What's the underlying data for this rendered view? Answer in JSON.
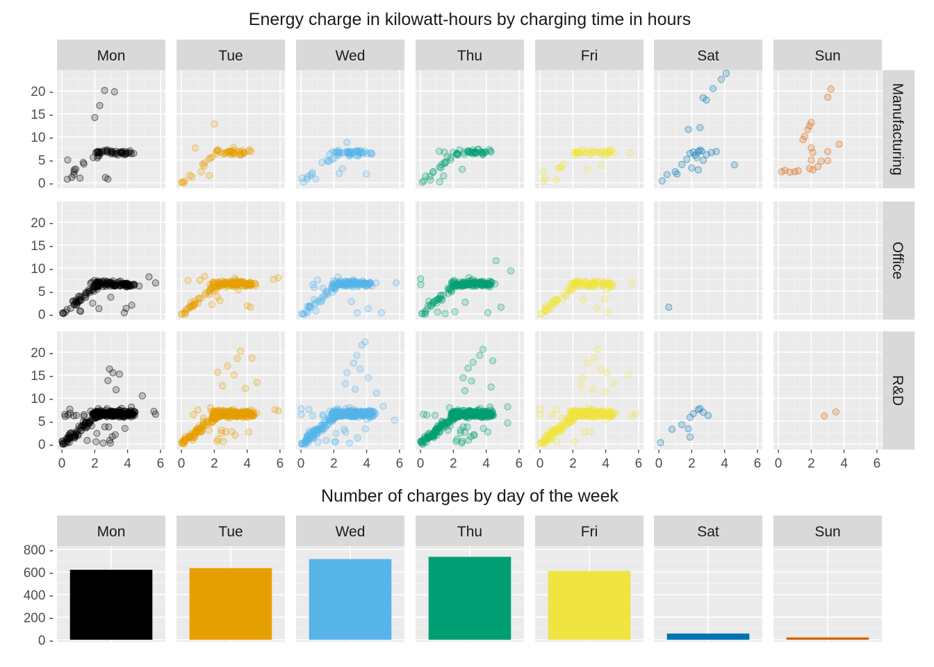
{
  "chart_data": [
    {
      "type": "scatter",
      "title": "Energy charge in kilowatt-hours by charging time in hours",
      "facet_cols": [
        "Mon",
        "Tue",
        "Wed",
        "Thu",
        "Fri",
        "Sat",
        "Sun"
      ],
      "facet_rows": [
        "Manufacturing",
        "Office",
        "R&D"
      ],
      "day_colors": [
        "#000000",
        "#E69F00",
        "#56B4E9",
        "#009E73",
        "#F0E442",
        "#0072B2",
        "#D55E00"
      ],
      "point_alpha": 0.2,
      "xlim": [
        -0.3,
        6.3
      ],
      "ylim": [
        -1.2,
        24.5
      ],
      "x_ticks": [
        0,
        2,
        4,
        6
      ],
      "y_ticks": [
        0,
        5,
        10,
        15,
        20
      ],
      "x_tick_labels": [
        "0",
        "2",
        "4",
        "6"
      ],
      "y_tick_labels": [
        "0 -",
        "5 -",
        "10 -",
        "15 -",
        "20 -"
      ],
      "grid": true,
      "panels": [
        {
          "row": "Manufacturing",
          "col": "Mon",
          "n": 55,
          "outliers": [
            [
              2.6,
              20.1
            ],
            [
              3.2,
              19.8
            ],
            [
              2.3,
              16.8
            ],
            [
              2.0,
              14.2
            ],
            [
              2.8,
              0.8
            ],
            [
              0.6,
              1.2
            ],
            [
              1.1,
              1.0
            ]
          ]
        },
        {
          "row": "Manufacturing",
          "col": "Tue",
          "n": 50,
          "outliers": [
            [
              2.0,
              12.8
            ],
            [
              0.2,
              0.4
            ],
            [
              1.7,
              1.6
            ]
          ]
        },
        {
          "row": "Manufacturing",
          "col": "Wed",
          "n": 60,
          "outliers": [
            [
              0.4,
              1.3
            ],
            [
              0.9,
              0.8
            ],
            [
              2.8,
              8.8
            ]
          ]
        },
        {
          "row": "Manufacturing",
          "col": "Thu",
          "n": 55,
          "outliers": [
            [
              0.1,
              0.1
            ],
            [
              0.6,
              0.6
            ],
            [
              1.4,
              1.5
            ]
          ]
        },
        {
          "row": "Manufacturing",
          "col": "Fri",
          "n": 45,
          "outliers": [
            [
              0.2,
              0.3
            ],
            [
              1.0,
              0.6
            ],
            [
              5.5,
              6.5
            ]
          ]
        },
        {
          "row": "Manufacturing",
          "col": "Sat",
          "n": 0,
          "points": [
            [
              4.1,
              23.8
            ],
            [
              3.8,
              22.5
            ],
            [
              3.3,
              20.5
            ],
            [
              2.7,
              18.5
            ],
            [
              2.9,
              18.0
            ],
            [
              2.5,
              12.0
            ],
            [
              1.8,
              11.6
            ],
            [
              0.2,
              0.4
            ],
            [
              0.5,
              1.8
            ],
            [
              1.0,
              2.4
            ],
            [
              1.4,
              4.0
            ],
            [
              1.7,
              5.1
            ],
            [
              1.9,
              6.4
            ],
            [
              2.1,
              6.7
            ],
            [
              2.2,
              6.0
            ],
            [
              2.4,
              6.8
            ],
            [
              2.5,
              7.1
            ],
            [
              2.6,
              6.9
            ],
            [
              2.3,
              5.5
            ],
            [
              2.7,
              4.9
            ],
            [
              2.0,
              3.2
            ],
            [
              2.9,
              6.1
            ],
            [
              3.2,
              6.6
            ],
            [
              3.5,
              6.8
            ],
            [
              4.6,
              3.9
            ],
            [
              1.1,
              1.9
            ],
            [
              2.4,
              2.8
            ]
          ]
        },
        {
          "row": "Manufacturing",
          "col": "Sun",
          "n": 0,
          "points": [
            [
              3.2,
              20.4
            ],
            [
              3.0,
              18.6
            ],
            [
              2.0,
              13.1
            ],
            [
              1.9,
              12.4
            ],
            [
              1.8,
              11.6
            ],
            [
              1.6,
              10.1
            ],
            [
              1.5,
              9.4
            ],
            [
              2.0,
              7.6
            ],
            [
              2.1,
              6.6
            ],
            [
              3.0,
              6.8
            ],
            [
              3.7,
              8.4
            ],
            [
              2.6,
              4.7
            ],
            [
              3.0,
              4.8
            ],
            [
              2.0,
              4.9
            ],
            [
              1.9,
              3.1
            ],
            [
              2.4,
              3.5
            ],
            [
              0.2,
              2.4
            ],
            [
              0.4,
              2.7
            ],
            [
              0.7,
              2.3
            ],
            [
              1.0,
              2.4
            ],
            [
              1.2,
              2.6
            ],
            [
              2.1,
              2.8
            ]
          ]
        },
        {
          "row": "Office",
          "col": "Mon",
          "n": 140,
          "outliers": [
            [
              0.1,
              0.1
            ],
            [
              0.05,
              0.2
            ],
            [
              3.8,
              0.3
            ],
            [
              5.7,
              6.8
            ],
            [
              5.3,
              8.1
            ],
            [
              4.7,
              6.1
            ]
          ]
        },
        {
          "row": "Office",
          "col": "Tue",
          "n": 140,
          "outliers": [
            [
              0.2,
              0.5
            ],
            [
              0.5,
              1.6
            ],
            [
              0.4,
              7.3
            ],
            [
              4.2,
              1.5
            ],
            [
              5.9,
              7.9
            ],
            [
              5.6,
              7.6
            ]
          ]
        },
        {
          "row": "Office",
          "col": "Wed",
          "n": 140,
          "outliers": [
            [
              0.4,
              0.3
            ],
            [
              0.9,
              0.7
            ],
            [
              4.9,
              0.3
            ],
            [
              5.8,
              6.8
            ],
            [
              4.1,
              1.2
            ]
          ]
        },
        {
          "row": "Office",
          "col": "Thu",
          "n": 150,
          "outliers": [
            [
              0.1,
              0.1
            ],
            [
              1.5,
              0.1
            ],
            [
              4.6,
              11.6
            ],
            [
              5.5,
              9.4
            ],
            [
              4.9,
              1.5
            ],
            [
              4.1,
              0.3
            ]
          ]
        },
        {
          "row": "Office",
          "col": "Fri",
          "n": 110,
          "outliers": [
            [
              0.1,
              0.1
            ],
            [
              0.3,
              1.2
            ],
            [
              5.6,
              6.8
            ],
            [
              4.1,
              0.4
            ]
          ]
        },
        {
          "row": "Office",
          "col": "Sat",
          "n": 0,
          "points": [
            [
              0.6,
              1.5
            ]
          ]
        },
        {
          "row": "Office",
          "col": "Sun",
          "n": 0,
          "points": []
        },
        {
          "row": "R&D",
          "col": "Mon",
          "n": 320,
          "outliers": [
            [
              2.9,
              16.3
            ],
            [
              3.1,
              15.5
            ],
            [
              3.5,
              15.2
            ],
            [
              2.8,
              13.8
            ],
            [
              3.3,
              11.8
            ],
            [
              4.9,
              10.5
            ],
            [
              0.2,
              6.0
            ],
            [
              0.5,
              6.7
            ],
            [
              5.6,
              7.1
            ],
            [
              5.7,
              6.5
            ],
            [
              0.05,
              0.1
            ],
            [
              0.1,
              0.3
            ]
          ]
        },
        {
          "row": "R&D",
          "col": "Tue",
          "n": 340,
          "outliers": [
            [
              3.6,
              20.2
            ],
            [
              3.4,
              18.6
            ],
            [
              2.8,
              17.0
            ],
            [
              4.3,
              18.7
            ],
            [
              2.2,
              15.6
            ],
            [
              3.2,
              15.0
            ],
            [
              4.6,
              13.4
            ],
            [
              2.5,
              12.7
            ],
            [
              3.9,
              12.1
            ],
            [
              5.7,
              7.5
            ],
            [
              5.9,
              7.2
            ],
            [
              0.1,
              0.2
            ]
          ]
        },
        {
          "row": "R&D",
          "col": "Wed",
          "n": 400,
          "outliers": [
            [
              3.9,
              22.2
            ],
            [
              3.7,
              21.5
            ],
            [
              3.4,
              19.3
            ],
            [
              3.2,
              17.6
            ],
            [
              2.8,
              15.5
            ],
            [
              3.6,
              16.3
            ],
            [
              4.1,
              14.4
            ],
            [
              2.7,
              13.1
            ],
            [
              3.3,
              11.9
            ],
            [
              4.6,
              11.1
            ],
            [
              5.0,
              8.2
            ],
            [
              5.7,
              5.2
            ],
            [
              0.05,
              0.2
            ]
          ]
        },
        {
          "row": "R&D",
          "col": "Thu",
          "n": 400,
          "outliers": [
            [
              3.8,
              20.6
            ],
            [
              3.6,
              19.3
            ],
            [
              3.2,
              17.8
            ],
            [
              2.9,
              16.5
            ],
            [
              4.4,
              18.1
            ],
            [
              2.6,
              14.4
            ],
            [
              3.1,
              13.7
            ],
            [
              4.3,
              12.4
            ],
            [
              2.7,
              11.6
            ],
            [
              5.3,
              8.1
            ],
            [
              5.3,
              4.6
            ],
            [
              0.05,
              0.3
            ]
          ]
        },
        {
          "row": "R&D",
          "col": "Fri",
          "n": 360,
          "outliers": [
            [
              3.5,
              20.6
            ],
            [
              3.3,
              18.8
            ],
            [
              2.9,
              17.6
            ],
            [
              3.7,
              16.2
            ],
            [
              4.1,
              15.5
            ],
            [
              5.4,
              15.1
            ],
            [
              2.6,
              14.4
            ],
            [
              4.5,
              13.1
            ],
            [
              2.5,
              12.7
            ],
            [
              3.2,
              11.9
            ],
            [
              4.0,
              11.3
            ],
            [
              5.8,
              6.5
            ],
            [
              5.6,
              6.1
            ],
            [
              0.05,
              0.2
            ]
          ]
        },
        {
          "row": "R&D",
          "col": "Sat",
          "n": 0,
          "points": [
            [
              0.1,
              0.3
            ],
            [
              0.8,
              3.2
            ],
            [
              1.4,
              4.2
            ],
            [
              1.8,
              3.3
            ],
            [
              1.9,
              1.5
            ],
            [
              1.9,
              5.8
            ],
            [
              2.1,
              6.6
            ],
            [
              2.4,
              7.5
            ],
            [
              2.5,
              7.7
            ],
            [
              2.7,
              6.9
            ],
            [
              3.0,
              6.2
            ]
          ]
        },
        {
          "row": "R&D",
          "col": "Sun",
          "n": 0,
          "points": [
            [
              2.8,
              6.1
            ],
            [
              3.5,
              7.0
            ]
          ]
        }
      ]
    },
    {
      "type": "bar",
      "title": "Number of charges by day of the week",
      "categories": [
        "Mon",
        "Tue",
        "Wed",
        "Thu",
        "Fri",
        "Sat",
        "Sun"
      ],
      "values": [
        620,
        635,
        715,
        735,
        610,
        55,
        20
      ],
      "bar_colors": [
        "#000000",
        "#E69F00",
        "#56B4E9",
        "#009E73",
        "#F0E442",
        "#0072B2",
        "#D55E00"
      ],
      "ylim": [
        -20,
        830
      ],
      "y_ticks": [
        0,
        200,
        400,
        600,
        800
      ],
      "y_tick_labels": [
        "0 -",
        "200 -",
        "400 -",
        "600 -",
        "800 -"
      ],
      "grid": true
    }
  ]
}
